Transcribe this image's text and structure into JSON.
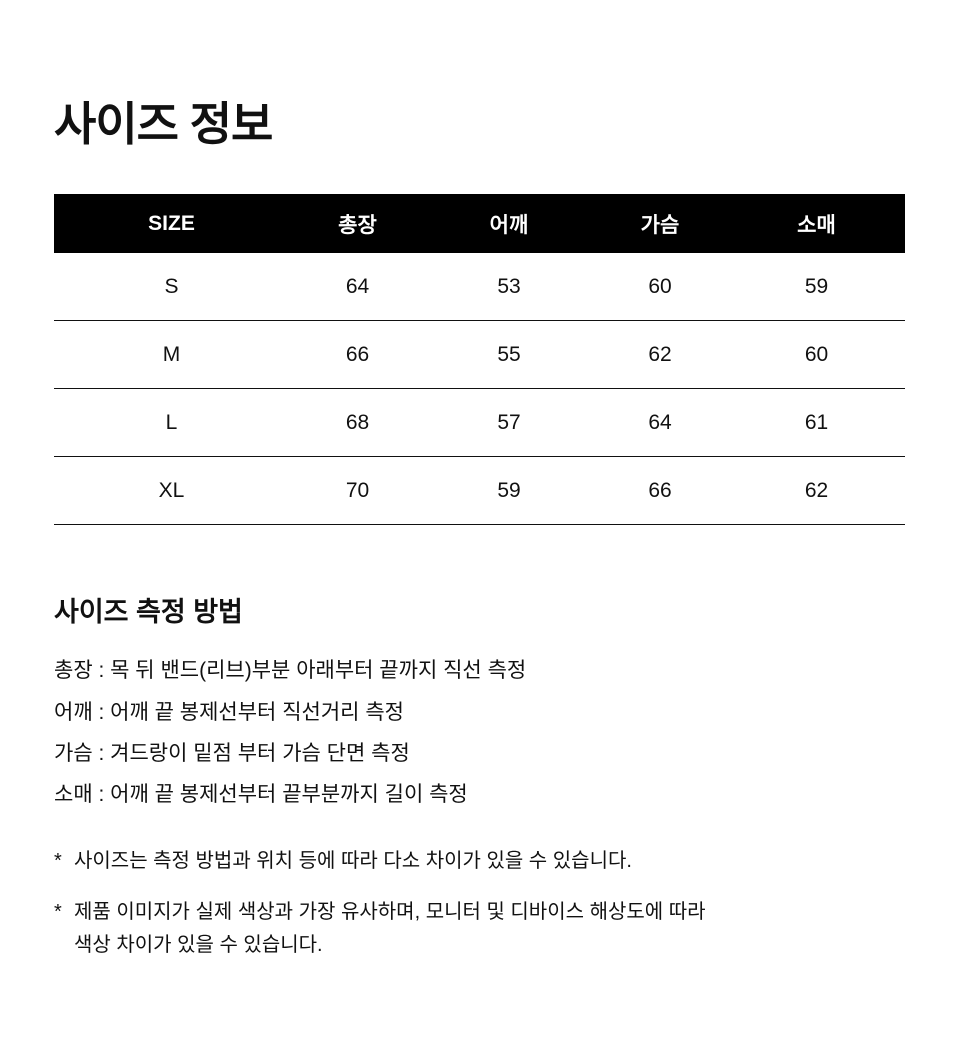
{
  "title": "사이즈 정보",
  "table": {
    "headers": [
      "SIZE",
      "총장",
      "어깨",
      "가슴",
      "소매"
    ],
    "rows": [
      [
        "S",
        "64",
        "53",
        "60",
        "59"
      ],
      [
        "M",
        "66",
        "55",
        "62",
        "60"
      ],
      [
        "L",
        "68",
        "57",
        "64",
        "61"
      ],
      [
        "XL",
        "70",
        "59",
        "66",
        "62"
      ]
    ]
  },
  "measure": {
    "title": "사이즈 측정 방법",
    "lines": [
      "총장 : 목 뒤 밴드(리브)부분 아래부터 끝까지 직선 측정",
      "어깨 : 어깨 끝 봉제선부터 직선거리 측정",
      "가슴 : 겨드랑이 밑점 부터 가슴 단면 측정",
      "소매 : 어깨 끝 봉제선부터 끝부분까지 길이 측정"
    ]
  },
  "notes": {
    "bullet": "*",
    "note1": "사이즈는 측정 방법과 위치 등에 따라 다소 차이가 있을 수 있습니다.",
    "note2_line1": "제품 이미지가 실제 색상과 가장 유사하며, 모니터 및 디바이스 해상도에 따라",
    "note2_line2": "색상 차이가 있을 수 있습니다."
  }
}
